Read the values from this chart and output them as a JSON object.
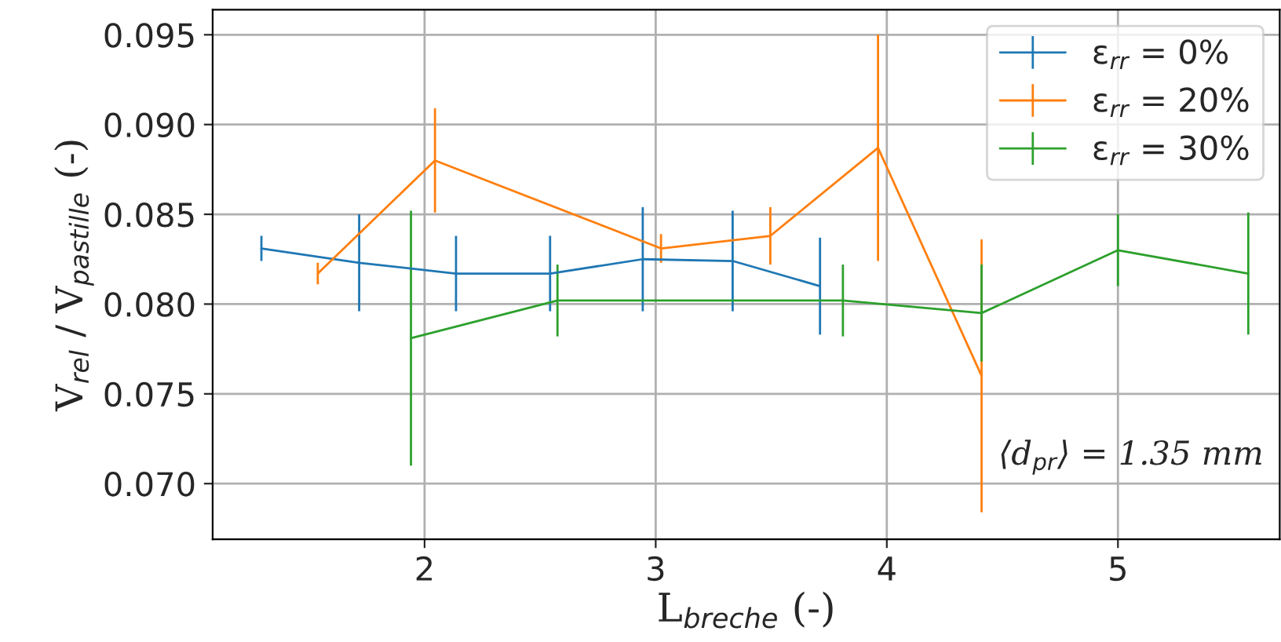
{
  "chart_data": {
    "type": "line",
    "xlabel": "L$_{breche}$ (-)",
    "ylabel": "V$_{rel}$ / V$_{pastille}$ (-)",
    "series": [
      {
        "name": "ε$_{rr}$ = 0%",
        "color": "#1f77b4",
        "x": [
          1.294,
          1.717,
          2.136,
          2.543,
          2.944,
          3.333,
          3.711
        ],
        "values": [
          0.0831,
          0.0823,
          0.0817,
          0.0817,
          0.0825,
          0.0824,
          0.081
        ],
        "errors": [
          0.0007,
          0.0027,
          0.0021,
          0.0021,
          0.0029,
          0.0028,
          0.0027
        ]
      },
      {
        "name": "ε$_{rr}$ = 20%",
        "color": "#ff7f0e",
        "x": [
          1.538,
          2.045,
          3.023,
          3.496,
          3.962,
          4.41
        ],
        "values": [
          0.0817,
          0.088,
          0.0831,
          0.0838,
          0.0887,
          0.076
        ],
        "errors": [
          0.0006,
          0.0029,
          0.0008,
          0.0016,
          0.0063,
          0.0076
        ]
      },
      {
        "name": "ε$_{rr}$ = 30%",
        "color": "#2ca02c",
        "x": [
          1.941,
          2.575,
          3.81,
          4.41,
          5.0,
          5.564
        ],
        "values": [
          0.0781,
          0.0802,
          0.0802,
          0.0795,
          0.083,
          0.0817
        ],
        "errors": [
          0.0071,
          0.002,
          0.002,
          0.0027,
          0.002,
          0.0034
        ]
      }
    ],
    "xlim": [
      1.083,
      5.7
    ],
    "ylim": [
      0.0669,
      0.0964
    ],
    "xticks": [
      2,
      3,
      4,
      5
    ],
    "yticks": [
      {
        "value": 0.07,
        "label": "0.070"
      },
      {
        "value": 0.075,
        "label": "0.075"
      },
      {
        "value": 0.08,
        "label": "0.080"
      },
      {
        "value": 0.085,
        "label": "0.085"
      },
      {
        "value": 0.09,
        "label": "0.090"
      },
      {
        "value": 0.095,
        "label": "0.095"
      }
    ],
    "grid": true,
    "legend": "top right",
    "marker": "none",
    "line_style": "solid",
    "annotations": [
      "⟨d$_{pr}$⟩ = 1.35 mm"
    ]
  }
}
